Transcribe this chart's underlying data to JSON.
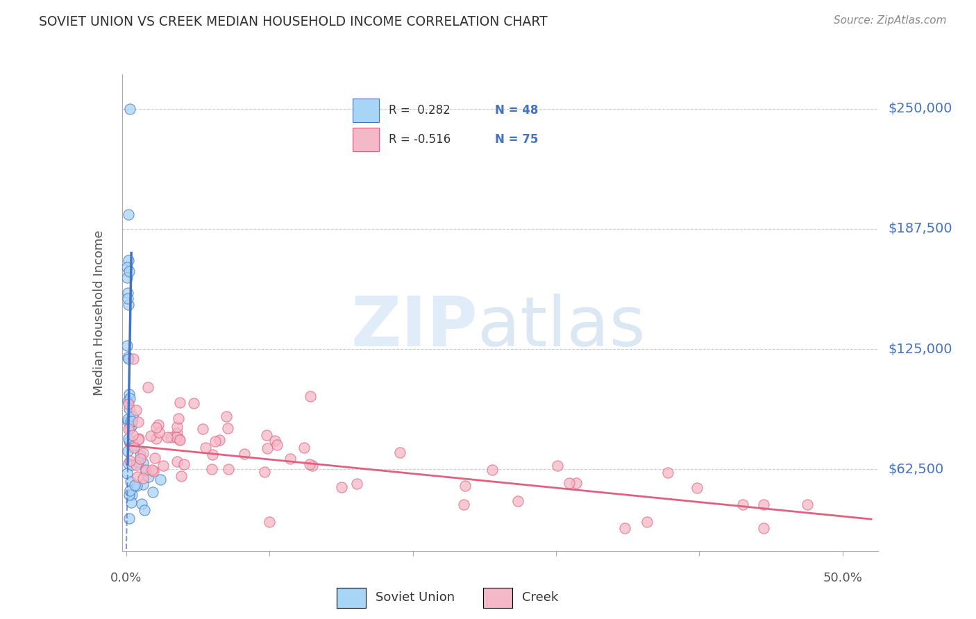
{
  "title": "SOVIET UNION VS CREEK MEDIAN HOUSEHOLD INCOME CORRELATION CHART",
  "source": "Source: ZipAtlas.com",
  "ylabel": "Median Household Income",
  "ytick_labels": [
    "$62,500",
    "$125,000",
    "$187,500",
    "$250,000"
  ],
  "ytick_values": [
    62500,
    125000,
    187500,
    250000
  ],
  "ylim": [
    20000,
    268000
  ],
  "xlim": [
    -0.003,
    0.525
  ],
  "watermark_zip": "ZIP",
  "watermark_atlas": "atlas",
  "soviet_scatter_color": "#A8D4F5",
  "soviet_edge_color": "#4472C4",
  "creek_scatter_color": "#F5B8C8",
  "creek_edge_color": "#E0607E",
  "soviet_line_color": "#4472C4",
  "creek_line_color": "#E0607E",
  "background_color": "#FFFFFF",
  "grid_color": "#CCCCCC",
  "right_label_color": "#4472C4",
  "title_color": "#333333",
  "legend_r1_label": "R =  0.282",
  "legend_n1_label": "N = 48",
  "legend_r2_label": "R = -0.516",
  "legend_n2_label": "N = 75",
  "legend_dark_color": "#333333",
  "soviet_union_label": "Soviet Union",
  "creek_label": "Creek"
}
